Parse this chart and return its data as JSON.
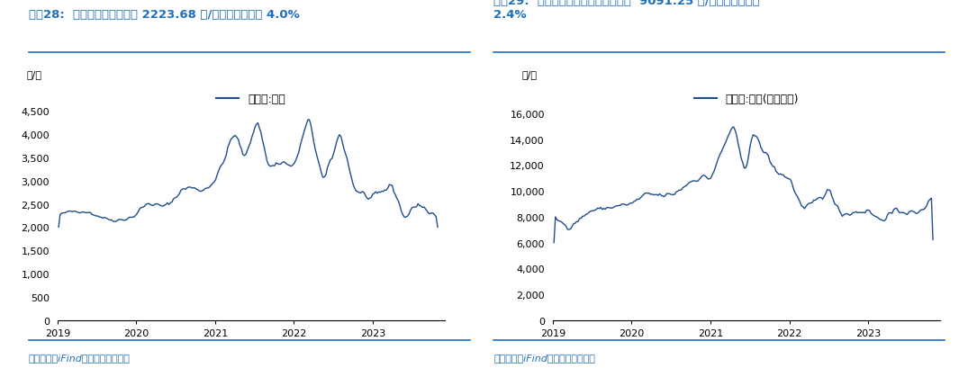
{
  "title1": "图表28:  本周国内菜粕现货价 2223.68 元/吨，较上周下跌 4.0%",
  "title2": "图表29:  本周国内进口四级菜油现货价  9091.25 元/吨，较上周下跌\n2.4%",
  "legend1": "现货价:菜粕",
  "legend2": "现货价:菜油(进口四级)",
  "ylabel": "元/吨",
  "source": "资料来源：iFind，国盛证券研究所",
  "line_color": "#1F4E8C",
  "title_color": "#1F6FBF",
  "source_color": "#1F6FBF",
  "bg_color": "#FFFFFF",
  "ylim1": [
    0,
    5000
  ],
  "ylim2": [
    0,
    18000
  ],
  "yticks1": [
    0,
    500,
    1000,
    1500,
    2000,
    2500,
    3000,
    3500,
    4000,
    4500
  ],
  "yticks2": [
    0,
    2000,
    4000,
    6000,
    8000,
    10000,
    12000,
    14000,
    16000
  ],
  "title_fontsize": 9.5,
  "legend_fontsize": 9,
  "tick_fontsize": 8,
  "ylabel_fontsize": 8,
  "source_fontsize": 8
}
